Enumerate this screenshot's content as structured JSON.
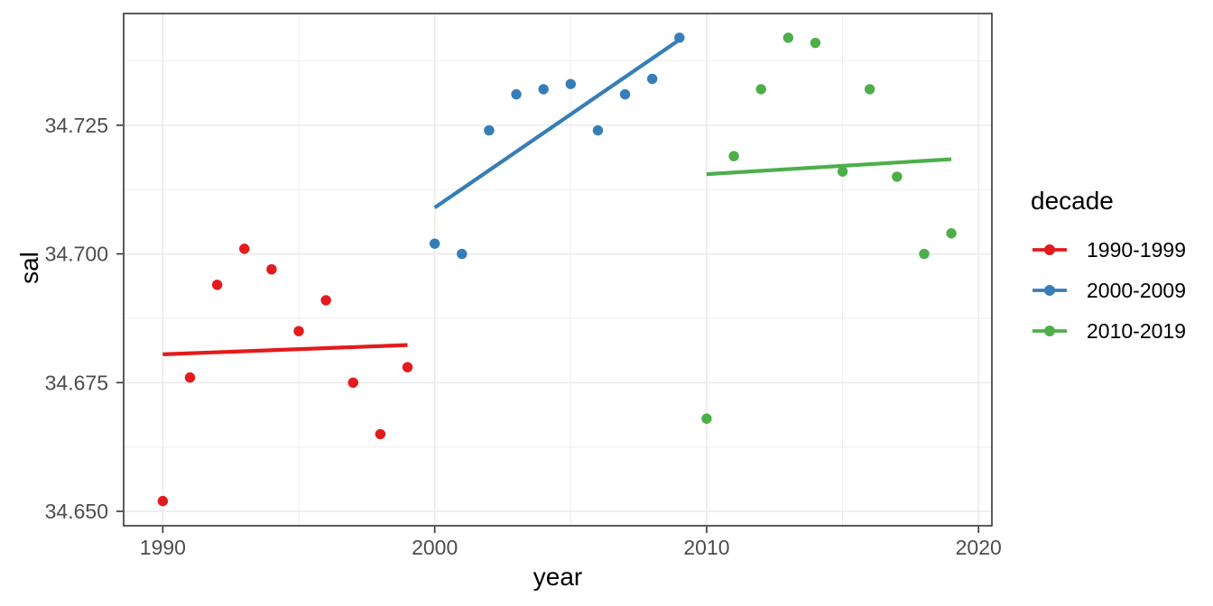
{
  "chart_data": {
    "type": "scatter",
    "title": "",
    "xlabel": "year",
    "ylabel": "sal",
    "xlim": [
      1988.56,
      2020.49
    ],
    "ylim": [
      34.6472,
      34.7467
    ],
    "x_ticks": [
      1990,
      2000,
      2010,
      2020
    ],
    "x_tick_labels": [
      "1990",
      "2000",
      "2010",
      "2020"
    ],
    "x_minor_ticks": [
      1995,
      2005,
      2015
    ],
    "y_ticks": [
      34.65,
      34.675,
      34.7,
      34.725
    ],
    "y_tick_labels": [
      "34.650",
      "34.675",
      "34.700",
      "34.725"
    ],
    "y_minor_ticks": [
      34.6625,
      34.6875,
      34.7125,
      34.7375
    ],
    "grid": true,
    "legend": {
      "title": "decade",
      "position": "right",
      "items": [
        "1990-1999",
        "2000-2009",
        "2010-2019"
      ]
    },
    "series": [
      {
        "name": "1990-1999",
        "color": "#E41A1C",
        "x": [
          1990,
          1991,
          1992,
          1993,
          1994,
          1995,
          1996,
          1997,
          1998,
          1999
        ],
        "y": [
          34.652,
          34.676,
          34.694,
          34.701,
          34.697,
          34.685,
          34.691,
          34.675,
          34.665,
          34.678
        ],
        "trend": {
          "x": [
            1990,
            1999
          ],
          "y": [
            34.6805,
            34.6823
          ]
        }
      },
      {
        "name": "2000-2009",
        "color": "#377EB8",
        "x": [
          2000,
          2001,
          2002,
          2003,
          2004,
          2005,
          2006,
          2007,
          2008,
          2009
        ],
        "y": [
          34.702,
          34.7,
          34.724,
          34.731,
          34.732,
          34.733,
          34.724,
          34.731,
          34.734,
          34.742
        ],
        "trend": {
          "x": [
            2000,
            2009
          ],
          "y": [
            34.709,
            34.7416
          ]
        }
      },
      {
        "name": "2010-2019",
        "color": "#4DAF4A",
        "x": [
          2010,
          2011,
          2012,
          2013,
          2014,
          2015,
          2016,
          2017,
          2018,
          2019
        ],
        "y": [
          34.668,
          34.719,
          34.732,
          34.742,
          34.741,
          34.716,
          34.732,
          34.715,
          34.7,
          34.704
        ],
        "trend": {
          "x": [
            2010,
            2019
          ],
          "y": [
            34.7155,
            34.7184
          ]
        }
      }
    ],
    "style": {
      "panel_background": "#FFFFFF",
      "grid_color": "#EBEBEB",
      "panel_border_color": "#333333",
      "tick_color": "#333333",
      "tick_label_color": "#4D4D4D",
      "title_color": "#000000",
      "point_radius": 5.7,
      "line_width": 4.2
    }
  }
}
